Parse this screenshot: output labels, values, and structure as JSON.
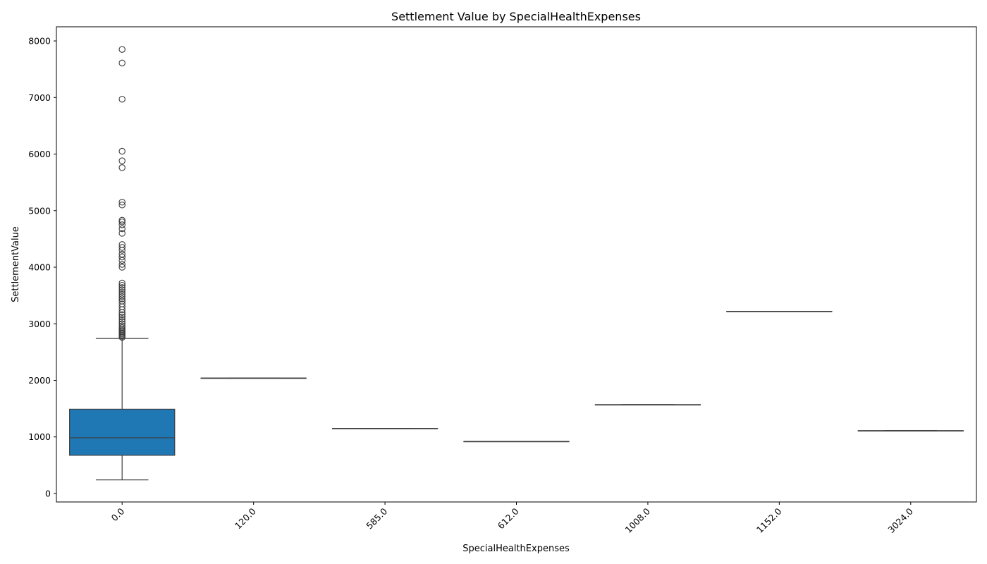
{
  "chart_data": {
    "type": "box",
    "title": "Settlement Value by SpecialHealthExpenses",
    "xlabel": "SpecialHealthExpenses",
    "ylabel": "SettlementValue",
    "ylim": [
      -150,
      8250
    ],
    "yticks": [
      0,
      1000,
      2000,
      3000,
      4000,
      5000,
      6000,
      7000,
      8000
    ],
    "ytick_labels": [
      "0",
      "1000",
      "2000",
      "3000",
      "4000",
      "5000",
      "6000",
      "7000",
      "8000"
    ],
    "categories": [
      "0.0",
      "120.0",
      "585.0",
      "612.0",
      "1008.0",
      "1152.0",
      "3024.0"
    ],
    "grid": false,
    "legend": "none",
    "box_color": "#1f77b4",
    "line_color": "#3d3d3d",
    "boxes": [
      {
        "category": "0.0",
        "whisker_low": 240,
        "q1": 675,
        "median": 985,
        "q3": 1490,
        "whisker_high": 2740,
        "outliers": [
          2760,
          2780,
          2800,
          2820,
          2840,
          2860,
          2880,
          2900,
          2930,
          2960,
          3000,
          3040,
          3080,
          3120,
          3160,
          3200,
          3250,
          3300,
          3350,
          3400,
          3440,
          3480,
          3520,
          3560,
          3600,
          3640,
          3680,
          3720,
          4000,
          4050,
          4120,
          4180,
          4230,
          4300,
          4350,
          4400,
          4600,
          4680,
          4750,
          4800,
          4830,
          5100,
          5150,
          5760,
          5880,
          6050,
          6970,
          7610,
          7850
        ]
      },
      {
        "category": "120.0",
        "whisker_low": 2040,
        "q1": 2040,
        "median": 2040,
        "q3": 2040,
        "whisker_high": 2040,
        "outliers": []
      },
      {
        "category": "585.0",
        "whisker_low": 1150,
        "q1": 1150,
        "median": 1150,
        "q3": 1150,
        "whisker_high": 1150,
        "outliers": []
      },
      {
        "category": "612.0",
        "whisker_low": 920,
        "q1": 920,
        "median": 920,
        "q3": 920,
        "whisker_high": 920,
        "outliers": []
      },
      {
        "category": "1008.0",
        "whisker_low": 1570,
        "q1": 1570,
        "median": 1570,
        "q3": 1570,
        "whisker_high": 1570,
        "outliers": []
      },
      {
        "category": "1152.0",
        "whisker_low": 3220,
        "q1": 3220,
        "median": 3220,
        "q3": 3220,
        "whisker_high": 3220,
        "outliers": []
      },
      {
        "category": "3024.0",
        "whisker_low": 1110,
        "q1": 1110,
        "median": 1110,
        "q3": 1110,
        "whisker_high": 1110,
        "outliers": []
      }
    ]
  }
}
